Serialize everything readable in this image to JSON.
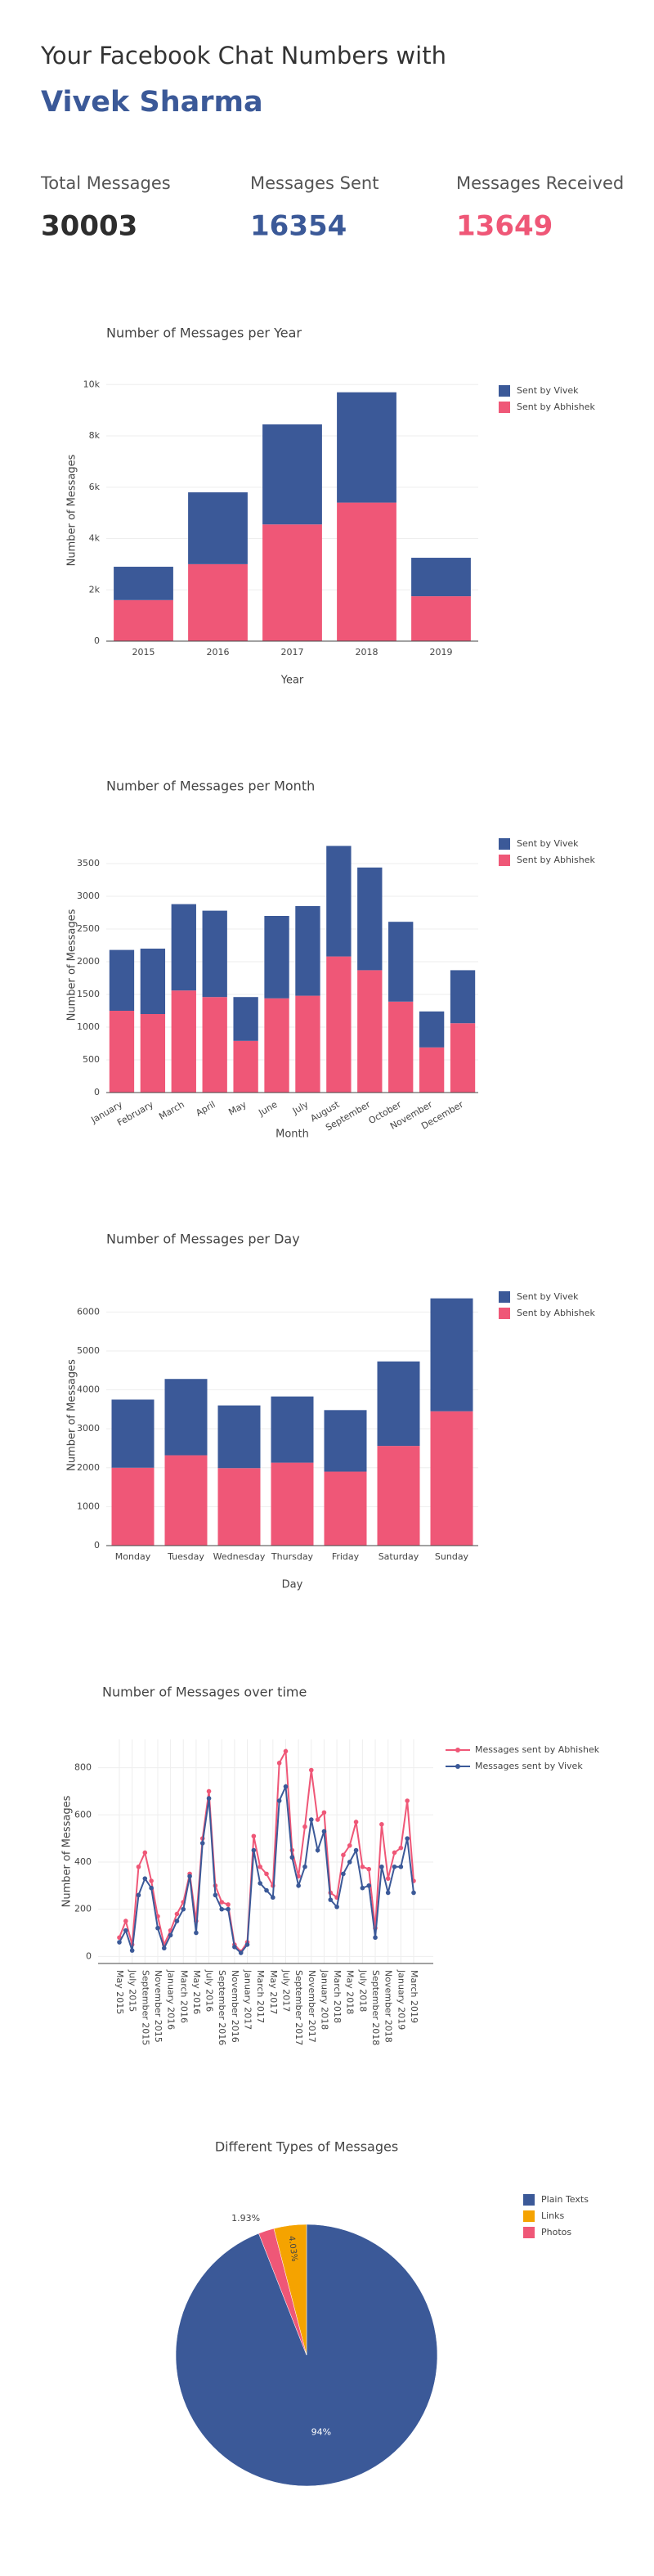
{
  "header": {
    "title": "Your Facebook Chat Numbers with",
    "name": "Vivek Sharma"
  },
  "stats": [
    {
      "label": "Total Messages",
      "value": 30003,
      "color": "#2d2d2d"
    },
    {
      "label": "Messages Sent",
      "value": 16354,
      "color": "#3b5998"
    },
    {
      "label": "Messages Received",
      "value": 13649,
      "color": "#ef5777"
    }
  ],
  "chart_data": [
    {
      "type": "bar",
      "stacked": true,
      "title": "Number of Messages per Year",
      "x_label": "Year",
      "y_label": "Number of Messages",
      "categories": [
        "2015",
        "2016",
        "2017",
        "2018",
        "2019"
      ],
      "series": [
        {
          "name": "Sent by Abhishek",
          "color": "#ef5777",
          "values": [
            1600,
            3000,
            4550,
            5400,
            1750
          ]
        },
        {
          "name": "Sent by Vivek",
          "color": "#3b5998",
          "values": [
            1300,
            2800,
            3900,
            4300,
            1500
          ]
        }
      ],
      "ylim": [
        0,
        10200
      ],
      "yticks": [
        0,
        {
          "value": 2000,
          "label": "2k"
        },
        {
          "value": 4000,
          "label": "4k"
        },
        {
          "value": 6000,
          "label": "6k"
        },
        {
          "value": 8000,
          "label": "8k"
        },
        {
          "value": 10000,
          "label": "10k"
        }
      ],
      "grid": true,
      "legend": "top-right"
    },
    {
      "type": "bar",
      "stacked": true,
      "title": "Number of Messages per Month",
      "x_label": "Month",
      "y_label": "Number of Messages",
      "categories": [
        "January",
        "February",
        "March",
        "April",
        "May",
        "June",
        "July",
        "August",
        "September",
        "October",
        "November",
        "December"
      ],
      "series": [
        {
          "name": "Sent by Abhishek",
          "color": "#ef5777",
          "values": [
            1250,
            1200,
            1560,
            1460,
            790,
            1440,
            1480,
            2080,
            1870,
            1390,
            690,
            1060
          ]
        },
        {
          "name": "Sent by Vivek",
          "color": "#3b5998",
          "values": [
            930,
            1000,
            1320,
            1320,
            670,
            1260,
            1370,
            1690,
            1570,
            1220,
            550,
            810
          ]
        }
      ],
      "ylim": [
        0,
        3900
      ],
      "yticks": [
        0,
        500,
        1000,
        1500,
        2000,
        2500,
        3000,
        3500
      ],
      "grid": true,
      "legend": "top-right"
    },
    {
      "type": "bar",
      "stacked": true,
      "title": "Number of Messages per Day",
      "x_label": "Day",
      "y_label": "Number of Messages",
      "categories": [
        "Monday",
        "Tuesday",
        "Wednesday",
        "Thursday",
        "Friday",
        "Saturday",
        "Sunday"
      ],
      "series": [
        {
          "name": "Sent by Abhishek",
          "color": "#ef5777",
          "values": [
            2000,
            2320,
            1990,
            2130,
            1900,
            2560,
            3450
          ]
        },
        {
          "name": "Sent by Vivek",
          "color": "#3b5998",
          "values": [
            1750,
            1960,
            1610,
            1700,
            1580,
            2170,
            2900
          ]
        }
      ],
      "ylim": [
        0,
        6700
      ],
      "yticks": [
        0,
        1000,
        2000,
        3000,
        4000,
        5000,
        6000
      ],
      "grid": true,
      "legend": "top-right"
    },
    {
      "type": "line",
      "title": "Number of Messages over time",
      "y_label": "Number of Messages",
      "categories": [
        "May 2015",
        null,
        "July 2015",
        null,
        "September 2015",
        null,
        "November 2015",
        null,
        "January 2016",
        null,
        "March 2016",
        null,
        "May 2016",
        null,
        "July 2016",
        null,
        "September 2016",
        null,
        "November 2016",
        null,
        "January 2017",
        null,
        "March 2017",
        null,
        "May 2017",
        null,
        "July 2017",
        null,
        "September 2017",
        null,
        "November 2017",
        null,
        "January 2018",
        null,
        "March 2018",
        null,
        "May 2018",
        null,
        "July 2018",
        null,
        "September 2018",
        null,
        "November 2018",
        null,
        "January 2019",
        null,
        "March 2019"
      ],
      "series": [
        {
          "name": "Messages sent by Abhishek",
          "color": "#ef5777",
          "values": [
            80,
            150,
            50,
            380,
            440,
            320,
            170,
            50,
            110,
            180,
            230,
            350,
            150,
            500,
            700,
            300,
            230,
            220,
            50,
            20,
            60,
            510,
            380,
            350,
            300,
            820,
            870,
            450,
            340,
            550,
            790,
            580,
            610,
            270,
            250,
            430,
            470,
            570,
            380,
            370,
            120,
            560,
            330,
            440,
            460,
            660,
            320
          ]
        },
        {
          "name": "Messages sent by Vivek",
          "color": "#3b5998",
          "values": [
            60,
            110,
            25,
            260,
            330,
            290,
            120,
            35,
            90,
            150,
            200,
            340,
            100,
            480,
            670,
            260,
            200,
            200,
            40,
            15,
            50,
            450,
            310,
            280,
            250,
            660,
            720,
            420,
            300,
            380,
            580,
            450,
            530,
            240,
            210,
            350,
            400,
            450,
            290,
            300,
            80,
            380,
            270,
            380,
            380,
            500,
            270
          ]
        }
      ],
      "ylim": [
        -30,
        920
      ],
      "yticks": [
        0,
        200,
        400,
        600,
        800
      ],
      "grid": true,
      "legend": "top-right"
    },
    {
      "type": "pie",
      "title": "Different Types of Messages",
      "categories": [
        "Plain Texts",
        "Links",
        "Photos"
      ],
      "values": [
        94,
        4.03,
        1.93
      ],
      "value_labels": [
        "94%",
        "4.03%",
        "1.93%"
      ],
      "colors": [
        "#3b5998",
        "#f5a300",
        "#ef5777"
      ],
      "legend": "top-right"
    }
  ]
}
